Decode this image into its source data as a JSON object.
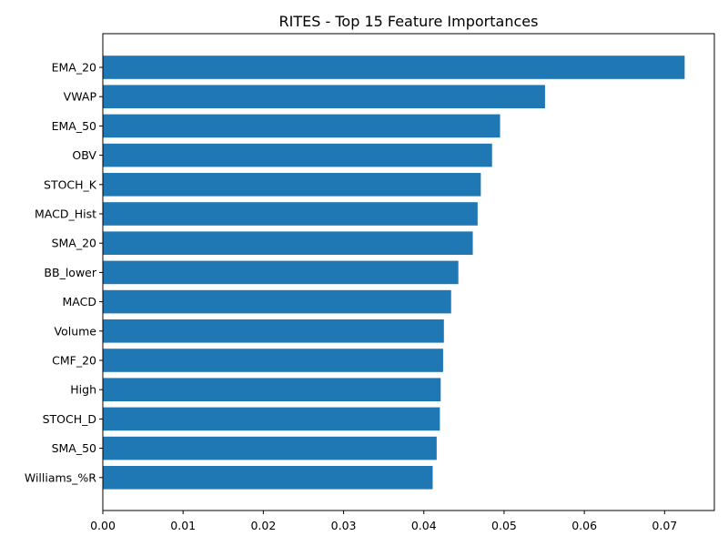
{
  "chart_data": {
    "type": "bar",
    "orientation": "horizontal",
    "title": "RITES - Top 15 Feature Importances",
    "xlabel": "",
    "ylabel": "",
    "categories": [
      "EMA_20",
      "VWAP",
      "EMA_50",
      "OBV",
      "STOCH_K",
      "MACD_Hist",
      "SMA_20",
      "BB_lower",
      "MACD",
      "Volume",
      "CMF_20",
      "High",
      "STOCH_D",
      "SMA_50",
      "Williams_%R"
    ],
    "values": [
      0.0725,
      0.0551,
      0.0495,
      0.0485,
      0.0471,
      0.0467,
      0.0461,
      0.0443,
      0.0434,
      0.0425,
      0.0424,
      0.0421,
      0.042,
      0.0416,
      0.0411
    ],
    "xlim": [
      0,
      0.0762
    ],
    "xticks": [
      "0.00",
      "0.01",
      "0.02",
      "0.03",
      "0.04",
      "0.05",
      "0.06",
      "0.07"
    ],
    "xtick_values": [
      0,
      0.01,
      0.02,
      0.03,
      0.04,
      0.05,
      0.06,
      0.07
    ],
    "bar_color": "#1f77b4",
    "grid": false,
    "legend": "none"
  }
}
